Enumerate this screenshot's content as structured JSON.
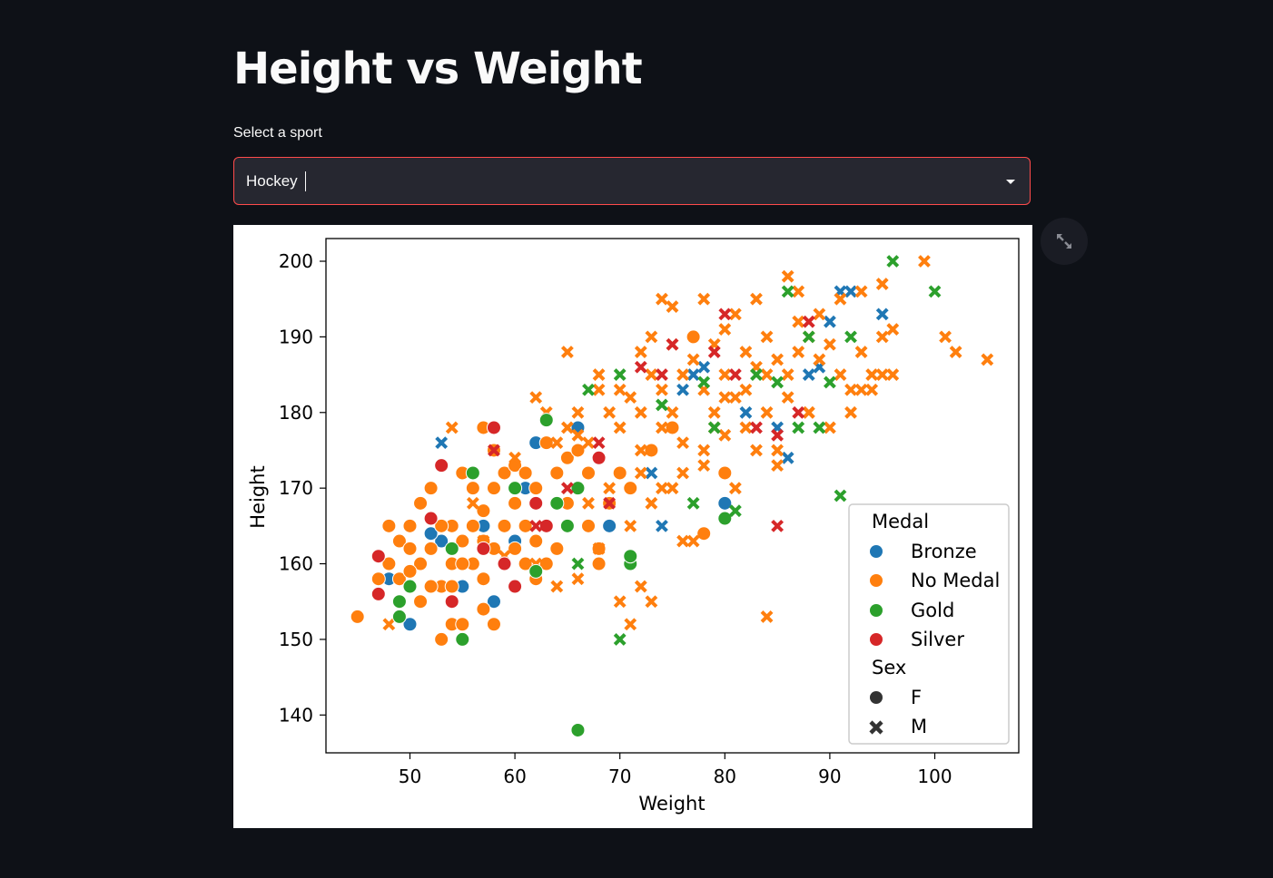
{
  "page": {
    "title": "Height vs Weight"
  },
  "selector": {
    "label": "Select a sport",
    "value": "Hockey"
  },
  "colors": {
    "Bronze": "#1f77b4",
    "No Medal": "#ff7f0e",
    "Gold": "#2ca02c",
    "Silver": "#d62728"
  },
  "chart_data": {
    "type": "scatter",
    "xlabel": "Weight",
    "ylabel": "Height",
    "xlim": [
      42,
      108
    ],
    "ylim": [
      135,
      203
    ],
    "xticks": [
      50,
      60,
      70,
      80,
      90,
      100
    ],
    "yticks": [
      140,
      150,
      160,
      170,
      180,
      190,
      200
    ],
    "legend": {
      "position": "bottom-right",
      "medal_title": "Medal",
      "medal_entries": [
        "Bronze",
        "No Medal",
        "Gold",
        "Silver"
      ],
      "sex_title": "Sex",
      "sex_entries": [
        "F",
        "M"
      ]
    },
    "series": [
      {
        "name": "Bronze",
        "marker": "circle",
        "sex": "F",
        "points": [
          [
            50,
            152
          ],
          [
            53,
            163
          ],
          [
            55,
            157
          ],
          [
            57,
            165
          ],
          [
            58,
            155
          ],
          [
            60,
            163
          ],
          [
            62,
            176
          ],
          [
            66,
            178
          ],
          [
            69,
            165
          ],
          [
            80,
            168
          ],
          [
            52,
            164
          ],
          [
            48,
            158
          ],
          [
            61,
            170
          ]
        ]
      },
      {
        "name": "Bronze",
        "marker": "x",
        "sex": "M",
        "points": [
          [
            53,
            176
          ],
          [
            74,
            165
          ],
          [
            76,
            183
          ],
          [
            77,
            185
          ],
          [
            78,
            186
          ],
          [
            82,
            180
          ],
          [
            85,
            178
          ],
          [
            88,
            185
          ],
          [
            89,
            186
          ],
          [
            90,
            192
          ],
          [
            91,
            196
          ],
          [
            92,
            196
          ],
          [
            95,
            193
          ],
          [
            73,
            172
          ],
          [
            86,
            174
          ]
        ]
      },
      {
        "name": "No Medal",
        "marker": "circle",
        "sex": "F",
        "points": [
          [
            45,
            153
          ],
          [
            47,
            158
          ],
          [
            48,
            160
          ],
          [
            49,
            163
          ],
          [
            50,
            165
          ],
          [
            51,
            168
          ],
          [
            52,
            162
          ],
          [
            53,
            157
          ],
          [
            54,
            160
          ],
          [
            55,
            163
          ],
          [
            56,
            165
          ],
          [
            57,
            167
          ],
          [
            58,
            170
          ],
          [
            59,
            172
          ],
          [
            60,
            168
          ],
          [
            61,
            165
          ],
          [
            62,
            163
          ],
          [
            63,
            160
          ],
          [
            64,
            162
          ],
          [
            65,
            168
          ],
          [
            66,
            170
          ],
          [
            67,
            172
          ],
          [
            68,
            160
          ],
          [
            69,
            168
          ],
          [
            70,
            172
          ],
          [
            53,
            150
          ],
          [
            54,
            152
          ],
          [
            55,
            152
          ],
          [
            58,
            152
          ],
          [
            52,
            157
          ],
          [
            51,
            160
          ],
          [
            56,
            160
          ],
          [
            57,
            158
          ],
          [
            59,
            160
          ],
          [
            60,
            162
          ],
          [
            61,
            160
          ],
          [
            62,
            170
          ],
          [
            64,
            172
          ],
          [
            65,
            174
          ],
          [
            66,
            175
          ],
          [
            60,
            173
          ],
          [
            58,
            175
          ],
          [
            57,
            163
          ],
          [
            56,
            170
          ],
          [
            55,
            172
          ],
          [
            54,
            165
          ],
          [
            52,
            170
          ],
          [
            50,
            162
          ],
          [
            49,
            158
          ],
          [
            48,
            165
          ],
          [
            77,
            190
          ],
          [
            78,
            164
          ],
          [
            80,
            172
          ],
          [
            73,
            175
          ],
          [
            75,
            178
          ],
          [
            71,
            170
          ],
          [
            63,
            165
          ],
          [
            67,
            165
          ],
          [
            68,
            162
          ],
          [
            59,
            165
          ],
          [
            62,
            158
          ],
          [
            57,
            154
          ],
          [
            55,
            160
          ],
          [
            54,
            157
          ],
          [
            53,
            165
          ],
          [
            51,
            155
          ],
          [
            50,
            159
          ],
          [
            58,
            162
          ],
          [
            61,
            172
          ],
          [
            63,
            176
          ],
          [
            57,
            178
          ]
        ]
      },
      {
        "name": "No Medal",
        "marker": "x",
        "sex": "M",
        "points": [
          [
            48,
            152
          ],
          [
            54,
            178
          ],
          [
            60,
            174
          ],
          [
            63,
            180
          ],
          [
            64,
            176
          ],
          [
            65,
            178
          ],
          [
            66,
            180
          ],
          [
            67,
            176
          ],
          [
            68,
            183
          ],
          [
            69,
            180
          ],
          [
            70,
            178
          ],
          [
            71,
            182
          ],
          [
            72,
            180
          ],
          [
            73,
            185
          ],
          [
            74,
            183
          ],
          [
            75,
            180
          ],
          [
            76,
            185
          ],
          [
            77,
            187
          ],
          [
            78,
            183
          ],
          [
            79,
            189
          ],
          [
            80,
            185
          ],
          [
            81,
            182
          ],
          [
            82,
            188
          ],
          [
            83,
            186
          ],
          [
            84,
            190
          ],
          [
            85,
            187
          ],
          [
            86,
            185
          ],
          [
            87,
            188
          ],
          [
            88,
            190
          ],
          [
            89,
            187
          ],
          [
            90,
            189
          ],
          [
            91,
            185
          ],
          [
            92,
            183
          ],
          [
            93,
            188
          ],
          [
            94,
            185
          ],
          [
            95,
            190
          ],
          [
            96,
            191
          ],
          [
            74,
            195
          ],
          [
            75,
            194
          ],
          [
            78,
            195
          ],
          [
            83,
            195
          ],
          [
            86,
            198
          ],
          [
            87,
            196
          ],
          [
            91,
            195
          ],
          [
            93,
            196
          ],
          [
            95,
            197
          ],
          [
            99,
            200
          ],
          [
            101,
            190
          ],
          [
            102,
            188
          ],
          [
            105,
            187
          ],
          [
            65,
            188
          ],
          [
            68,
            185
          ],
          [
            70,
            183
          ],
          [
            62,
            182
          ],
          [
            66,
            177
          ],
          [
            72,
            175
          ],
          [
            74,
            170
          ],
          [
            76,
            172
          ],
          [
            78,
            175
          ],
          [
            80,
            177
          ],
          [
            82,
            178
          ],
          [
            84,
            180
          ],
          [
            86,
            182
          ],
          [
            88,
            180
          ],
          [
            90,
            178
          ],
          [
            92,
            180
          ],
          [
            94,
            183
          ],
          [
            96,
            185
          ],
          [
            70,
            155
          ],
          [
            71,
            152
          ],
          [
            72,
            157
          ],
          [
            73,
            155
          ],
          [
            76,
            163
          ],
          [
            77,
            163
          ],
          [
            84,
            153
          ],
          [
            85,
            175
          ],
          [
            88,
            180
          ],
          [
            67,
            168
          ],
          [
            69,
            170
          ],
          [
            71,
            165
          ],
          [
            72,
            172
          ],
          [
            73,
            168
          ],
          [
            75,
            170
          ],
          [
            78,
            173
          ],
          [
            79,
            178
          ],
          [
            81,
            170
          ],
          [
            83,
            175
          ],
          [
            85,
            173
          ],
          [
            62,
            160
          ],
          [
            64,
            157
          ],
          [
            66,
            158
          ],
          [
            68,
            162
          ],
          [
            59,
            161
          ],
          [
            57,
            163
          ],
          [
            56,
            168
          ],
          [
            72,
            188
          ],
          [
            73,
            190
          ],
          [
            75,
            189
          ],
          [
            80,
            191
          ],
          [
            81,
            193
          ],
          [
            87,
            192
          ],
          [
            89,
            193
          ],
          [
            93,
            183
          ],
          [
            95,
            185
          ],
          [
            74,
            178
          ],
          [
            76,
            176
          ],
          [
            80,
            182
          ],
          [
            82,
            183
          ],
          [
            84,
            185
          ],
          [
            79,
            180
          ]
        ]
      },
      {
        "name": "Gold",
        "marker": "circle",
        "sex": "F",
        "points": [
          [
            49,
            155
          ],
          [
            49,
            153
          ],
          [
            50,
            157
          ],
          [
            55,
            150
          ],
          [
            56,
            172
          ],
          [
            60,
            170
          ],
          [
            62,
            159
          ],
          [
            63,
            179
          ],
          [
            64,
            168
          ],
          [
            65,
            165
          ],
          [
            66,
            138
          ],
          [
            66,
            170
          ],
          [
            71,
            160
          ],
          [
            71,
            161
          ],
          [
            80,
            166
          ],
          [
            54,
            162
          ]
        ]
      },
      {
        "name": "Gold",
        "marker": "x",
        "sex": "M",
        "points": [
          [
            66,
            160
          ],
          [
            67,
            183
          ],
          [
            70,
            150
          ],
          [
            70,
            185
          ],
          [
            74,
            181
          ],
          [
            77,
            168
          ],
          [
            79,
            178
          ],
          [
            81,
            167
          ],
          [
            83,
            185
          ],
          [
            86,
            196
          ],
          [
            87,
            178
          ],
          [
            88,
            190
          ],
          [
            89,
            178
          ],
          [
            90,
            184
          ],
          [
            91,
            169
          ],
          [
            96,
            200
          ],
          [
            100,
            196
          ],
          [
            92,
            190
          ],
          [
            85,
            184
          ],
          [
            78,
            184
          ]
        ]
      },
      {
        "name": "Silver",
        "marker": "circle",
        "sex": "F",
        "points": [
          [
            47,
            161
          ],
          [
            47,
            156
          ],
          [
            52,
            166
          ],
          [
            53,
            173
          ],
          [
            54,
            155
          ],
          [
            58,
            178
          ],
          [
            59,
            160
          ],
          [
            60,
            157
          ],
          [
            62,
            168
          ],
          [
            63,
            165
          ],
          [
            68,
            174
          ],
          [
            57,
            162
          ]
        ]
      },
      {
        "name": "Silver",
        "marker": "x",
        "sex": "M",
        "points": [
          [
            58,
            175
          ],
          [
            62,
            165
          ],
          [
            65,
            170
          ],
          [
            68,
            176
          ],
          [
            72,
            186
          ],
          [
            74,
            185
          ],
          [
            75,
            189
          ],
          [
            79,
            188
          ],
          [
            80,
            193
          ],
          [
            81,
            185
          ],
          [
            83,
            178
          ],
          [
            85,
            165
          ],
          [
            85,
            177
          ],
          [
            88,
            192
          ],
          [
            87,
            180
          ],
          [
            69,
            168
          ]
        ]
      }
    ]
  }
}
